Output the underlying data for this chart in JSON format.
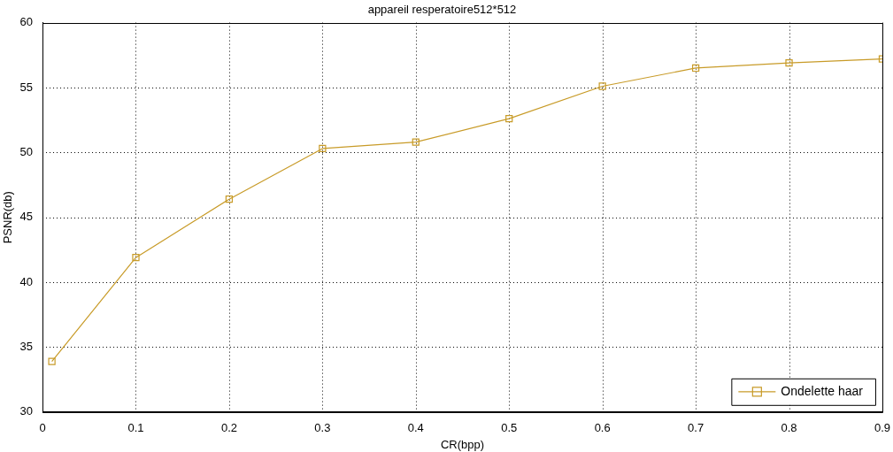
{
  "chart_data": {
    "type": "line",
    "title": "appareil resperatoire512*512",
    "xlabel": "CR(bpp)",
    "ylabel": "PSNR(db)",
    "x": [
      0.01,
      0.1,
      0.2,
      0.3,
      0.4,
      0.5,
      0.6,
      0.7,
      0.8,
      0.9
    ],
    "series": [
      {
        "name": "Ondelette haar",
        "color": "#c89b28",
        "values": [
          33.9,
          41.9,
          46.4,
          50.3,
          50.8,
          52.6,
          55.1,
          56.5,
          56.9,
          57.2
        ]
      }
    ],
    "xlim": [
      0,
      0.9
    ],
    "xticks": [
      0,
      0.1,
      0.2,
      0.3,
      0.4,
      0.5,
      0.6,
      0.7,
      0.8,
      0.9
    ],
    "ylim": [
      30,
      60
    ],
    "yticks": [
      30,
      35,
      40,
      45,
      50,
      55,
      60
    ],
    "grid": true,
    "legend": "bottom right",
    "marker": "square",
    "line_style": "solid"
  }
}
